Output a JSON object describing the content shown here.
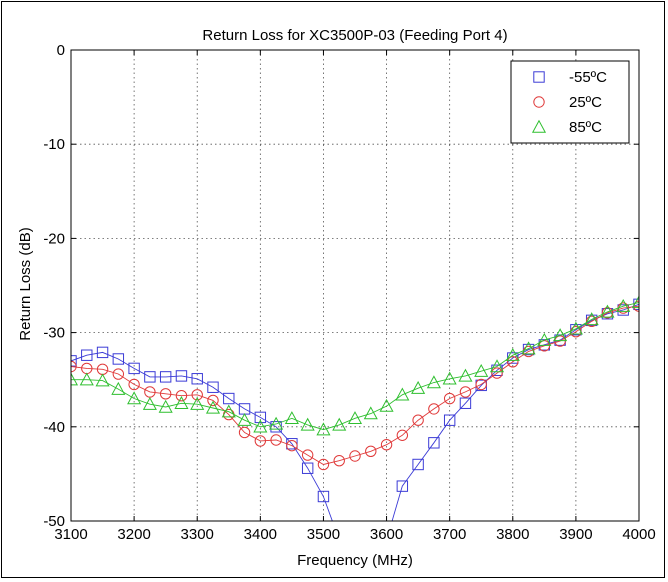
{
  "chart_data": {
    "type": "line",
    "title": "Return Loss for XC3500P-03 (Feeding Port 4)",
    "xlabel": "Frequency (MHz)",
    "ylabel": "Return Loss (dB)",
    "xlim": [
      3100,
      4000
    ],
    "ylim": [
      -50,
      0
    ],
    "xticks": [
      "3100",
      "3200",
      "3300",
      "3400",
      "3500",
      "3600",
      "3700",
      "3800",
      "3900",
      "4000"
    ],
    "yticks": [
      "0",
      "-10",
      "-20",
      "-30",
      "-40",
      "-50"
    ],
    "grid": true,
    "legend_position": "top-right",
    "series": [
      {
        "name": "-55ºC",
        "color": "#3b3bd6",
        "marker": "square",
        "x": [
          3100,
          3125,
          3150,
          3175,
          3200,
          3225,
          3250,
          3275,
          3300,
          3325,
          3350,
          3375,
          3400,
          3425,
          3450,
          3475,
          3500,
          3525,
          3600,
          3625,
          3650,
          3675,
          3700,
          3725,
          3750,
          3775,
          3800,
          3825,
          3850,
          3875,
          3900,
          3925,
          3950,
          3975,
          4000
        ],
        "y": [
          -33.0,
          -32.4,
          -32.1,
          -32.8,
          -33.8,
          -34.7,
          -34.7,
          -34.6,
          -34.9,
          -35.8,
          -37.0,
          -38.1,
          -39.0,
          -40.0,
          -41.8,
          -44.4,
          -47.4,
          -52,
          -52,
          -46.3,
          -44.0,
          -41.7,
          -39.3,
          -37.5,
          -35.6,
          -34.0,
          -32.7,
          -31.8,
          -31.3,
          -30.8,
          -29.7,
          -28.7,
          -28.0,
          -27.6,
          -27.0
        ]
      },
      {
        "name": "25ºC",
        "color": "#e03a3a",
        "marker": "circle",
        "x": [
          3100,
          3125,
          3150,
          3175,
          3200,
          3225,
          3250,
          3275,
          3300,
          3325,
          3350,
          3375,
          3400,
          3425,
          3450,
          3475,
          3500,
          3525,
          3550,
          3575,
          3600,
          3625,
          3650,
          3675,
          3700,
          3725,
          3750,
          3775,
          3800,
          3825,
          3850,
          3875,
          3900,
          3925,
          3950,
          3975,
          4000
        ],
        "y": [
          -33.6,
          -33.8,
          -33.9,
          -34.4,
          -35.5,
          -36.3,
          -36.5,
          -36.7,
          -36.6,
          -37.2,
          -38.7,
          -40.6,
          -41.5,
          -41.4,
          -42.0,
          -43.0,
          -44.0,
          -43.6,
          -43.1,
          -42.6,
          -41.9,
          -40.9,
          -39.3,
          -38.1,
          -37.0,
          -36.3,
          -35.5,
          -34.3,
          -33.1,
          -32.0,
          -31.4,
          -30.9,
          -29.9,
          -28.8,
          -27.9,
          -27.4,
          -27.2
        ]
      },
      {
        "name": "85ºC",
        "color": "#2fbf2f",
        "marker": "triangle",
        "x": [
          3100,
          3125,
          3150,
          3175,
          3200,
          3225,
          3250,
          3275,
          3300,
          3325,
          3350,
          3375,
          3400,
          3425,
          3450,
          3475,
          3500,
          3525,
          3550,
          3575,
          3600,
          3625,
          3650,
          3675,
          3700,
          3725,
          3750,
          3775,
          3800,
          3825,
          3850,
          3875,
          3900,
          3925,
          3950,
          3975,
          4000
        ],
        "y": [
          -35.0,
          -35.0,
          -35.1,
          -36.0,
          -37.0,
          -37.6,
          -37.9,
          -37.5,
          -37.6,
          -38.0,
          -38.4,
          -39.3,
          -40.0,
          -39.7,
          -39.1,
          -39.8,
          -40.3,
          -39.8,
          -39.1,
          -38.6,
          -37.8,
          -36.6,
          -35.9,
          -35.3,
          -34.9,
          -34.6,
          -34.1,
          -33.6,
          -32.4,
          -31.7,
          -30.8,
          -30.3,
          -29.6,
          -28.6,
          -27.8,
          -27.2,
          -26.8
        ]
      }
    ]
  }
}
